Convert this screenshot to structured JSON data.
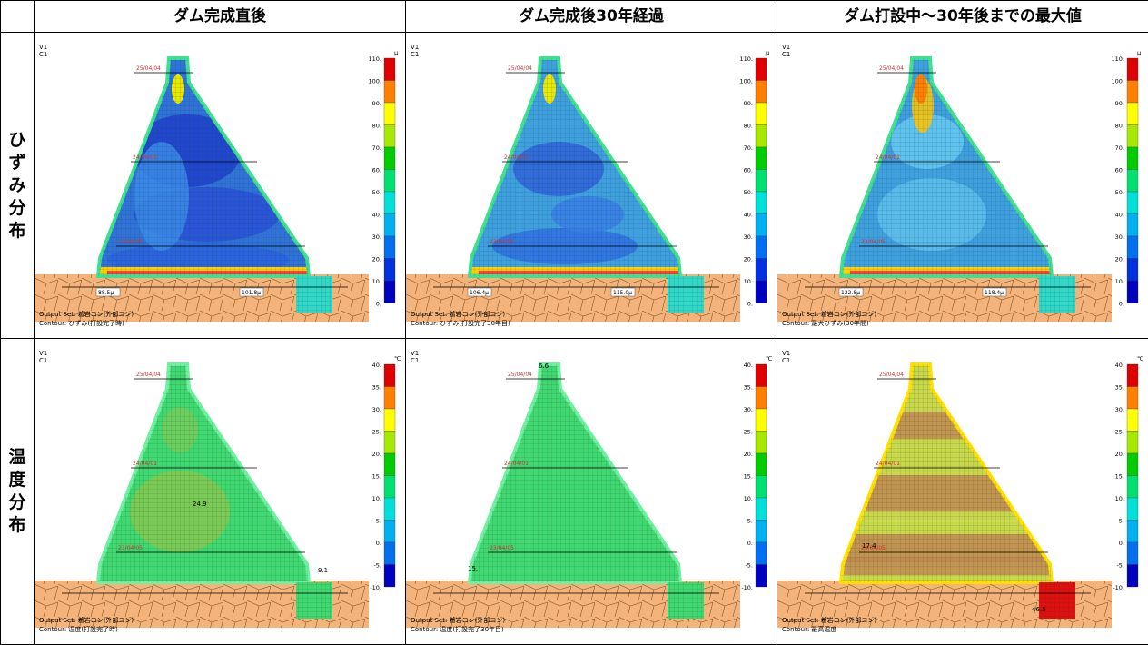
{
  "columns": [
    "ダム完成直後",
    "ダム完成後30年経過",
    "ダム打設中～30年後までの最大値"
  ],
  "rows": [
    {
      "label_chars": [
        "ひ",
        "ず",
        "み",
        "分",
        "布"
      ]
    },
    {
      "label_chars": [
        "温",
        "度",
        "分",
        "布"
      ]
    }
  ],
  "view_labels": [
    "V1",
    "C1"
  ],
  "lift_labels": [
    "25/04/04",
    "24/04/01",
    "23/04/05"
  ],
  "strain_scale": {
    "unit": "μ",
    "ticks": [
      "110.",
      "100.",
      "90.",
      "80.",
      "70.",
      "60.",
      "50.",
      "40.",
      "30.",
      "20.",
      "10.",
      "0."
    ],
    "colors": [
      "#e00000",
      "#ff7f00",
      "#ffff00",
      "#a8e800",
      "#00cc00",
      "#00e070",
      "#00e0d8",
      "#00b0f0",
      "#0070f0",
      "#0030e0",
      "#0000c0"
    ]
  },
  "temp_scale": {
    "unit": "℃",
    "ticks": [
      "40.",
      "35.",
      "30.",
      "25.",
      "20.",
      "15.",
      "10.",
      "5.",
      "0.",
      "-5.",
      "-10."
    ],
    "colors": [
      "#e00000",
      "#ff7f00",
      "#ffff00",
      "#a8e800",
      "#00cc00",
      "#00e070",
      "#00e0d8",
      "#00b0f0",
      "#0070f0",
      "#0000c0"
    ]
  },
  "output_set": "Output Set: 着岩コン(外部コン)",
  "output_set_short": "Output Set: 着岩コン(外部コン)",
  "panels": {
    "strain_1": {
      "contour": "Contour: ひずみ(打設完了時)",
      "values": [
        "88.5μ",
        "101.8μ"
      ]
    },
    "strain_2": {
      "contour": "Contour: ひずみ(打設完了30年目)",
      "values": [
        "106.4μ",
        "115.0μ"
      ]
    },
    "strain_3": {
      "contour": "Contour: 最大ひずみ(30年間)",
      "values": [
        "122.8μ",
        "118.4μ"
      ]
    },
    "temp_1": {
      "contour": "Contour: 温度(打設完了時)",
      "values": [
        "24.9",
        "9.1"
      ]
    },
    "temp_2": {
      "contour": "Contour: 温度(打設完了30年目)",
      "values": [
        "6.6",
        "15."
      ]
    },
    "temp_3": {
      "contour": "Contour: 最高温度",
      "values": [
        "17.4",
        "46.5"
      ]
    }
  }
}
